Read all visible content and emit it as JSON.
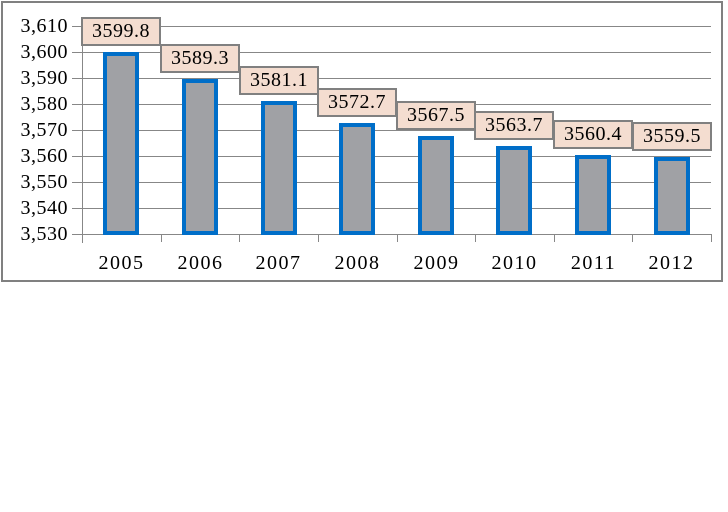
{
  "chart_data": {
    "type": "bar",
    "title": "",
    "xlabel": "",
    "ylabel": "",
    "categories": [
      "2005",
      "2006",
      "2007",
      "2008",
      "2009",
      "2010",
      "2011",
      "2012"
    ],
    "values": [
      3599.8,
      3589.3,
      3581.1,
      3572.7,
      3567.5,
      3563.7,
      3560.4,
      3559.5
    ],
    "value_labels": [
      "3599.8",
      "3589.3",
      "3581.1",
      "3572.7",
      "3567.5",
      "3563.7",
      "3560.4",
      "3559.5"
    ],
    "ylim": [
      3530,
      3610
    ],
    "y_tick_step": 10,
    "y_tick_labels": [
      "3,530",
      "3,540",
      "3,550",
      "3,560",
      "3,570",
      "3,580",
      "3,590",
      "3,600",
      "3,610"
    ],
    "grid": true,
    "legend": false,
    "colors": {
      "bar_fill": "#A0A1A5",
      "bar_border": "#006EC8",
      "data_label_bg": "#F4DDD0",
      "data_label_border": "#808080",
      "gridline": "#878787",
      "frame_border": "#808080",
      "text": "#000000",
      "background": "#FFFFFF"
    }
  }
}
